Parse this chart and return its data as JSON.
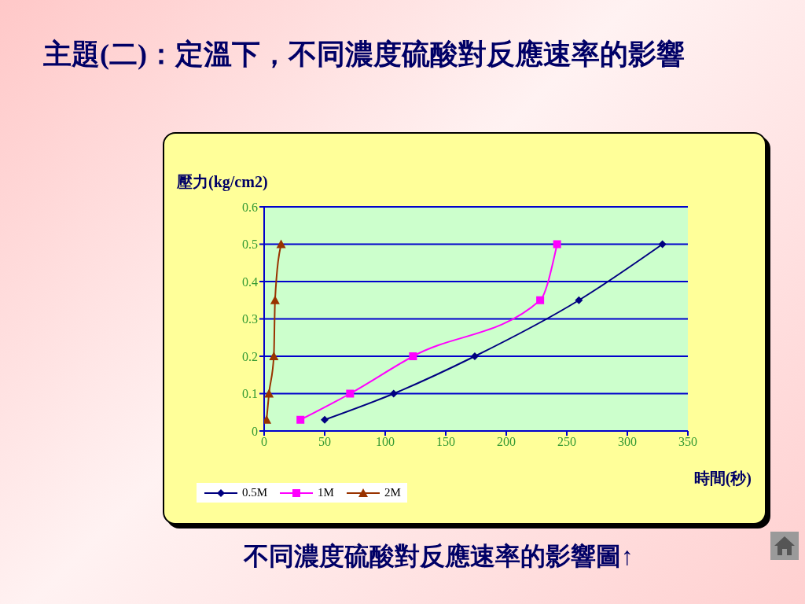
{
  "chart_data": {
    "type": "line",
    "title": "主題(二)：定溫下，不同濃度硫酸對反應速率的影響",
    "xlabel": "時間(秒)",
    "ylabel": "壓力(kg/cm2)",
    "annotations": [
      "不同濃度硫酸對反應速率的影響圖↑"
    ],
    "series": [
      {
        "name": "0.5M",
        "color": "#000080",
        "marker": "diamond",
        "x": [
          50,
          107,
          174,
          260,
          329
        ],
        "values": [
          0.03,
          0.1,
          0.2,
          0.35,
          0.5
        ]
      },
      {
        "name": "1M",
        "color": "#ff00ff",
        "marker": "square",
        "x": [
          30,
          71,
          123,
          228,
          242
        ],
        "values": [
          0.03,
          0.1,
          0.2,
          0.35,
          0.5
        ]
      },
      {
        "name": "2M",
        "color": "#993300",
        "marker": "triangle",
        "x": [
          2,
          4,
          8,
          9,
          14
        ],
        "values": [
          0.03,
          0.1,
          0.2,
          0.35,
          0.5
        ]
      }
    ],
    "xlim": [
      0,
      350
    ],
    "xticks": [
      0,
      50,
      100,
      150,
      200,
      250,
      300,
      350
    ],
    "ylim": [
      0,
      0.6
    ],
    "yticks": [
      0,
      0.1,
      0.2,
      0.3,
      0.4,
      0.5,
      0.6
    ],
    "grid": "y",
    "legend": "bottom left",
    "line_style": "solid"
  }
}
